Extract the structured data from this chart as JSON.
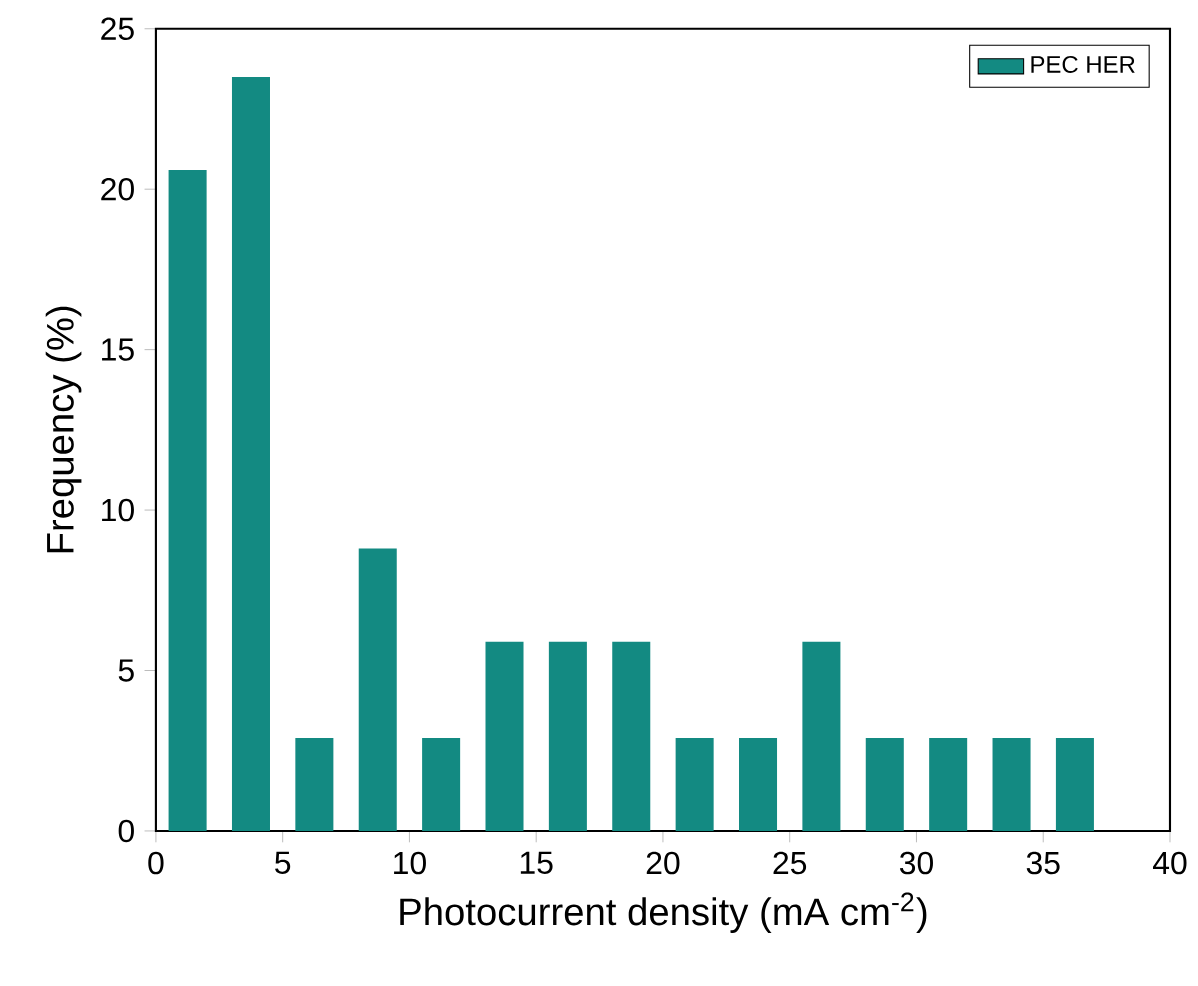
{
  "chart_data": {
    "type": "histogram",
    "xlabel": "Photocurrent density (mA cm$^{-2}$)",
    "ylabel": "Frequency (%)",
    "bins": [
      0,
      2.5,
      5,
      7.5,
      10,
      12.5,
      15,
      17.5,
      20,
      22.5,
      25,
      27.5,
      30,
      32.5,
      35,
      37.5
    ],
    "series": [
      {
        "name": "PEC HER",
        "color": "#138a82",
        "values": [
          20.6,
          23.5,
          2.9,
          8.8,
          2.9,
          5.9,
          5.9,
          5.9,
          2.9,
          2.9,
          5.9,
          2.9,
          2.9,
          2.9,
          2.9
        ]
      }
    ],
    "xlim": [
      0,
      40
    ],
    "ylim": [
      0,
      25
    ],
    "xticks": [
      0,
      5,
      10,
      15,
      20,
      25,
      30,
      35,
      40
    ],
    "yticks": [
      0,
      5,
      10,
      15,
      20,
      25
    ],
    "legend": "top right",
    "grid": false
  }
}
